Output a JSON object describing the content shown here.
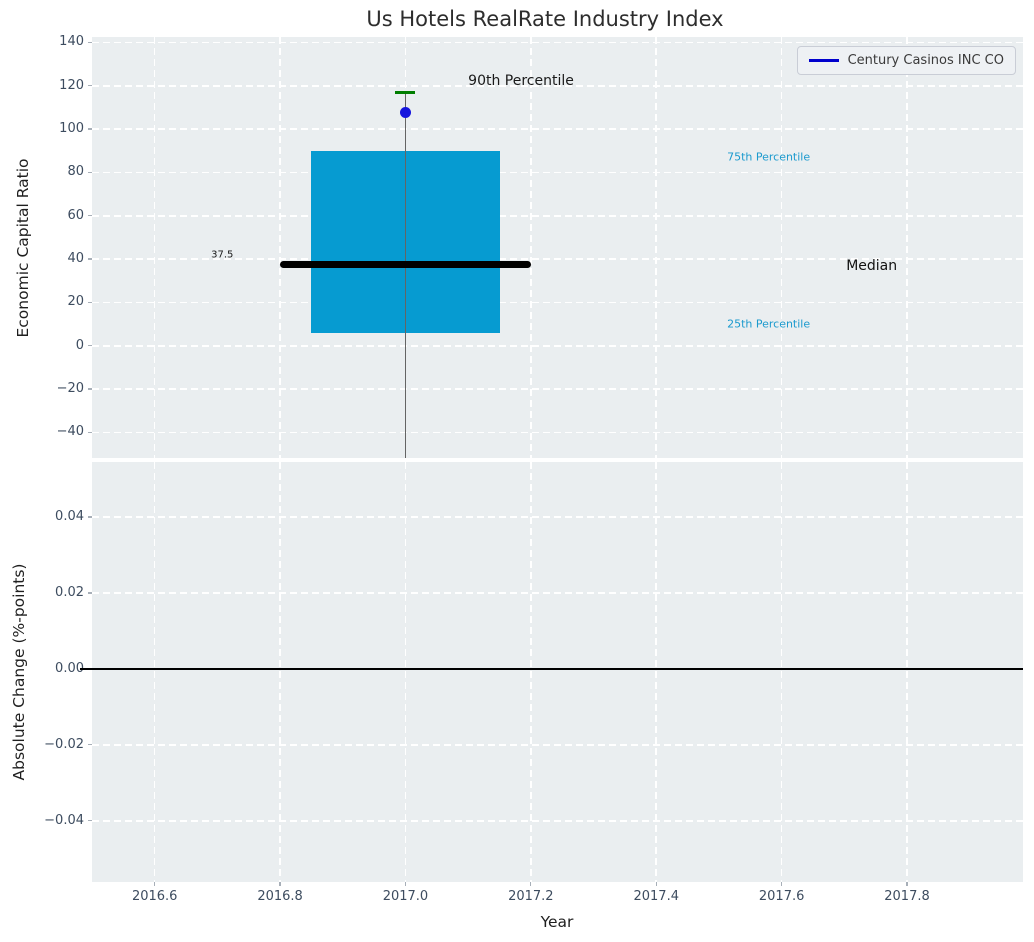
{
  "title": "Us Hotels RealRate Industry Index",
  "colors": {
    "axes_bg": "#eaeef0",
    "grid": "#ffffff",
    "box_fill": "#069bd1",
    "median_line": "#000000",
    "whisker": "#646464",
    "p90_cap": "#007d00",
    "company_point": "#1515dd",
    "legend_line": "#0000cd",
    "tick_label": "#3d4c5f",
    "tick_mark": "#a7afb8",
    "axis_label": "#1f1f1f",
    "title": "#2d2d2d",
    "zero_line": "#000000",
    "percentile_label": "#1b9ace"
  },
  "chart_data": [
    {
      "type": "boxplot",
      "ylabel": "Economic Capital Ratio",
      "xlim": [
        2016.5,
        2017.985
      ],
      "ylim": [
        -51.8,
        142.5
      ],
      "grid": "white dashed, on",
      "yticks": [
        {
          "v": 140,
          "label": "140"
        },
        {
          "v": 120,
          "label": "120"
        },
        {
          "v": 100,
          "label": "100"
        },
        {
          "v": 80,
          "label": "80"
        },
        {
          "v": 60,
          "label": "60"
        },
        {
          "v": 40,
          "label": "40"
        },
        {
          "v": 20,
          "label": "20"
        },
        {
          "v": 0,
          "label": "0"
        },
        {
          "v": -20,
          "label": "−20"
        },
        {
          "v": -40,
          "label": "−40"
        }
      ],
      "box": {
        "x": 2017.0,
        "box_width": 0.3,
        "q1": 6,
        "median": 37.5,
        "q3": 90,
        "p90": 117,
        "median_line_width": 0.4,
        "whisker_clipped_below_axis": true,
        "company_point": {
          "name": "Century Casinos INC CO",
          "x": 2017.0,
          "y": 107.5
        }
      },
      "annotations": [
        {
          "text": "90th Percentile",
          "x": 2017.1,
          "y": 122,
          "color": "#1a1a1a",
          "size": 14
        },
        {
          "text": "37.5",
          "x": 2016.69,
          "y": 42,
          "color": "#1a1a1a",
          "size": 10
        },
        {
          "text": "75th Percentile",
          "x": 2017.513,
          "y": 87,
          "color": "#1b9ace",
          "size": 11
        },
        {
          "text": "25th Percentile",
          "x": 2017.513,
          "y": 10,
          "color": "#1b9ace",
          "size": 11
        },
        {
          "text": "Median",
          "x": 2017.703,
          "y": 37,
          "color": "#111111",
          "size": 14
        }
      ],
      "legend": {
        "label": "Century Casinos INC CO",
        "position": "upper right"
      }
    },
    {
      "type": "line",
      "ylabel": "Absolute Change (%-points)",
      "xlabel": "Year",
      "xlim": [
        2016.5,
        2017.985
      ],
      "ylim": [
        -0.0561,
        0.0545
      ],
      "grid": "white dashed, on",
      "yticks": [
        {
          "v": 0.04,
          "label": "0.04"
        },
        {
          "v": 0.02,
          "label": "0.02"
        },
        {
          "v": 0,
          "label": "0.00"
        },
        {
          "v": -0.02,
          "label": "−0.02"
        },
        {
          "v": -0.04,
          "label": "−0.04"
        }
      ],
      "xticks": [
        {
          "v": 2016.6,
          "label": "2016.6"
        },
        {
          "v": 2016.8,
          "label": "2016.8"
        },
        {
          "v": 2017.0,
          "label": "2017.0"
        },
        {
          "v": 2017.2,
          "label": "2017.2"
        },
        {
          "v": 2017.4,
          "label": "2017.4"
        },
        {
          "v": 2017.6,
          "label": "2017.6"
        },
        {
          "v": 2017.8,
          "label": "2017.8"
        }
      ],
      "zero_line": 0
    }
  ]
}
